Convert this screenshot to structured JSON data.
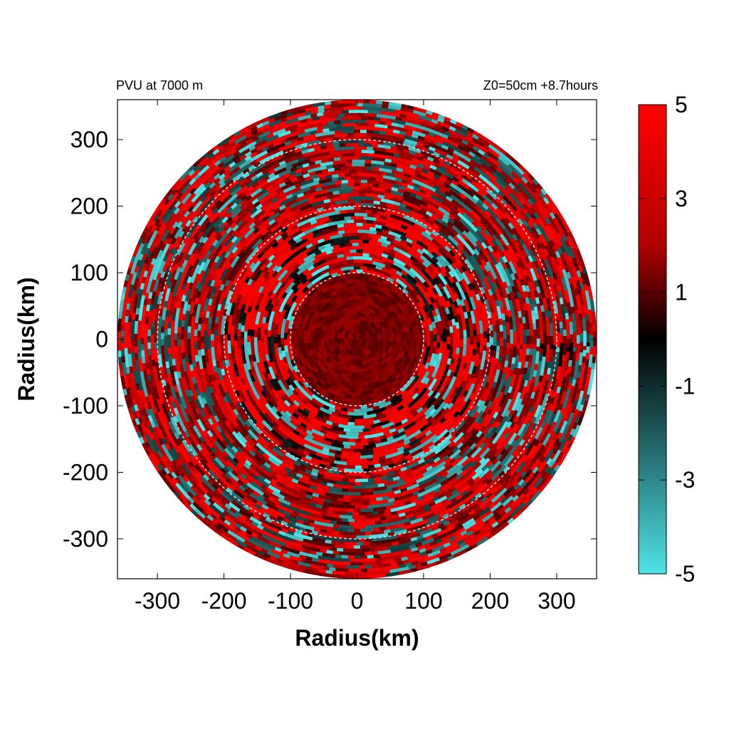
{
  "chart_data": {
    "type": "heatmap",
    "title_left": "PVU at  7000 m",
    "title_right": "Z0=50cm  +8.7hours",
    "xlabel": "Radius(km)",
    "ylabel": "Radius(km)",
    "xlim": [
      -360,
      360
    ],
    "ylim": [
      -360,
      360
    ],
    "x_ticks": [
      -300,
      -200,
      -100,
      0,
      100,
      200,
      300
    ],
    "y_ticks": [
      300,
      200,
      100,
      0,
      -100,
      -200,
      -300
    ],
    "domain_radius_km": 360,
    "reference_circles_km": [
      100,
      200,
      300
    ],
    "colorbar": {
      "range": [
        -5,
        5
      ],
      "ticks": [
        5,
        3,
        1,
        -1,
        -3,
        -5
      ],
      "colors": {
        "low": "#4fe3e6",
        "mid": "#000000",
        "high": "#ff0000"
      }
    },
    "field_description_values": {
      "inner_core_radius_km": 100,
      "inner_core_typical_pvu": 1.5,
      "ring_100_200_km_range_pvu": [
        -5,
        5
      ],
      "outer_region_range_pvu": [
        -5,
        5
      ]
    }
  }
}
